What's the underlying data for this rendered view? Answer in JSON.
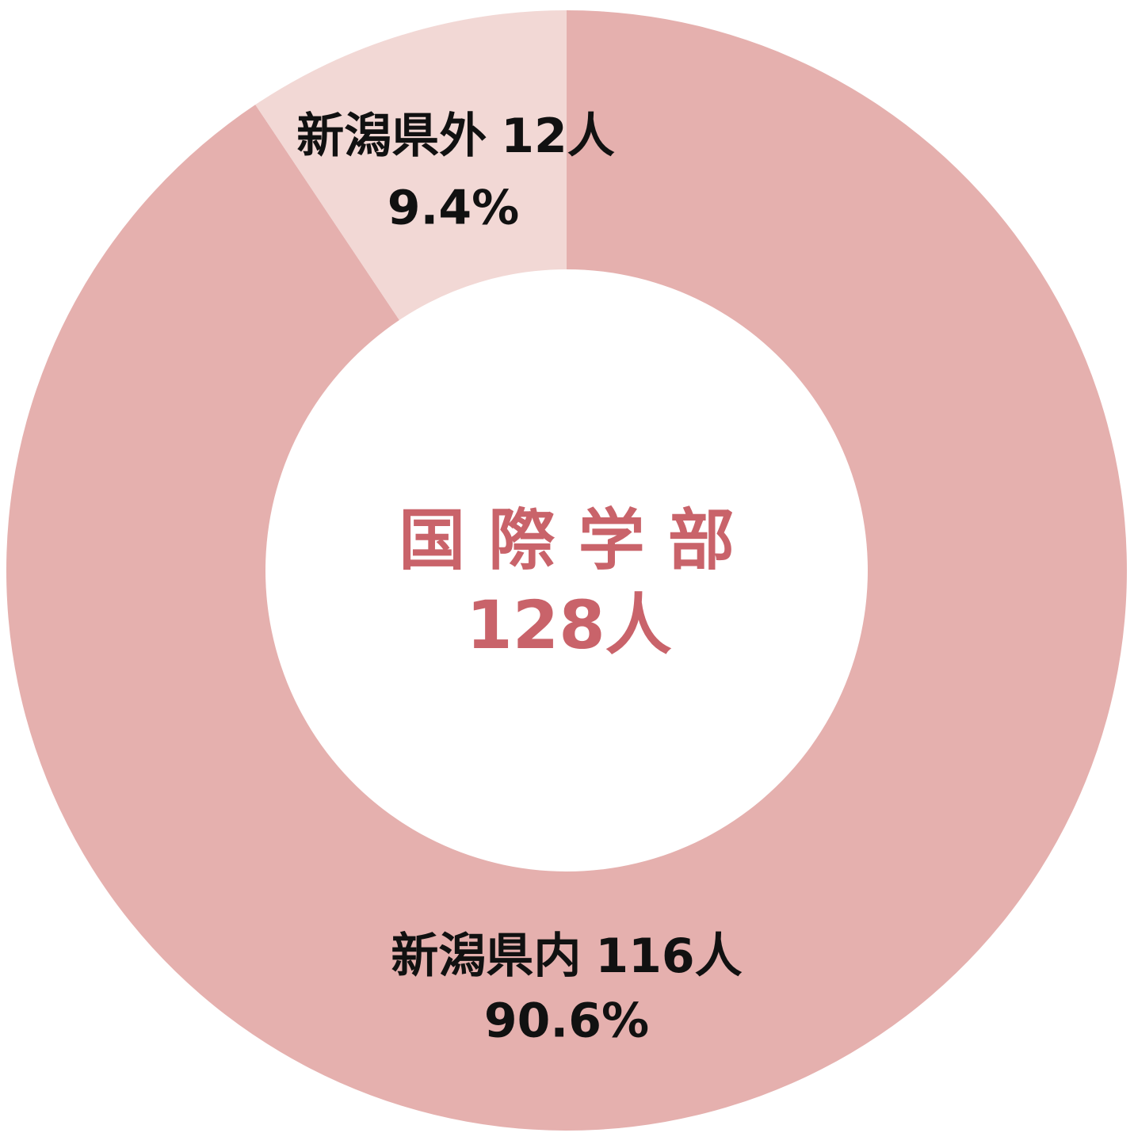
{
  "chart_data": {
    "type": "donut",
    "title": "国 際 学 部",
    "total": 128,
    "total_label": "128人",
    "categories": [
      "新潟県内",
      "新潟県外"
    ],
    "values": [
      116,
      12
    ],
    "value_labels": [
      "116人",
      "12人"
    ],
    "percents": [
      90.6,
      9.4
    ],
    "percent_labels": [
      "90.6%",
      "9.4%"
    ],
    "colors": [
      "#e5b0ae",
      "#f2d8d5"
    ]
  }
}
